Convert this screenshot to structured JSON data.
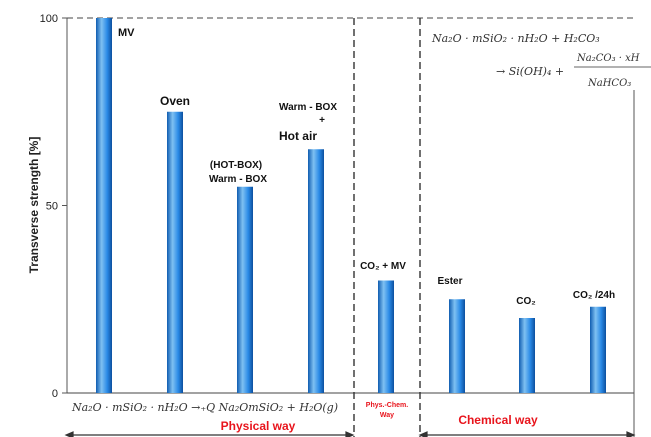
{
  "chart_data": {
    "type": "bar",
    "ylabel": "Transverse strength [%]",
    "ylim": [
      0,
      100
    ],
    "yticks": [
      0,
      50,
      100
    ],
    "bars": [
      {
        "label": "MV",
        "value": 100
      },
      {
        "label": "Oven",
        "value": 75
      },
      {
        "label": "(HOT-BOX)",
        "label2": "Warm - BOX",
        "value": 55
      },
      {
        "label": "Warm - BOX",
        "label2": "+",
        "label3": "Hot air",
        "value": 65
      },
      {
        "label": "CO₂ + MV",
        "value": 30
      },
      {
        "label": "Ester",
        "value": 25
      },
      {
        "label": "CO₂",
        "value": 20
      },
      {
        "label": "CO₂ /24h",
        "value": 23
      }
    ],
    "groups": [
      {
        "name": "Physical way",
        "equation": "Na₂O · mSiO₂ · nH₂O →₊Q Na₂OmSiO₂ + H₂O(g)"
      },
      {
        "name": "Phys.-Chem.",
        "name2": "Way"
      },
      {
        "name": "Chemical way"
      }
    ],
    "chemical_equation": {
      "line1": "Na₂O · mSiO₂ · nH₂O + H₂CO₃",
      "line2": "→ Si(OH)₄ +",
      "frac_top": "Na₂CO₃ · xH",
      "frac_bottom": "NaHCO₃"
    }
  },
  "colors": {
    "bar_light": "#7fc1f2",
    "bar_mid": "#2a8ae6",
    "bar_dark": "#0f5cb0",
    "accent": "#e8141c"
  }
}
